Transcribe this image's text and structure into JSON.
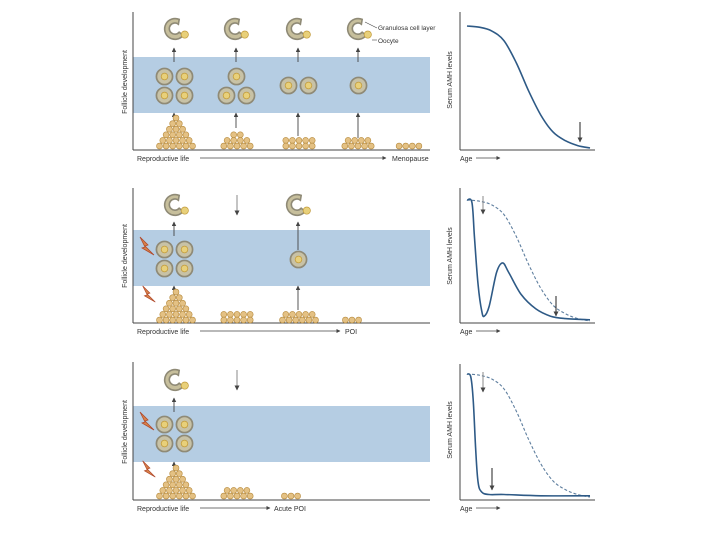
{
  "colors": {
    "band": "#b5cde3",
    "curve": "#2e5a86",
    "dashed": "#5f7f9f",
    "cell_ring": "#8f8a76",
    "cell_fill": "#c8c2a6",
    "oocyte": "#e8d07a",
    "oocyte_ring": "#c19a3a",
    "pool": "#e4c184",
    "pool_ring": "#b78b3e",
    "axis": "#444444",
    "bolt": "#d9834a",
    "bolt_dark": "#b04a2c"
  },
  "labels": {
    "granulosa": "Granulosa cell layer",
    "oocyte": "Oocyte",
    "follicle_dev": "Follicle development",
    "serum_amh": "Serum AMH levels",
    "age": "Age"
  },
  "panels": [
    {
      "id": "normal",
      "x_label_left": "Reproductive life",
      "x_label_right": "Menopause",
      "curve": {
        "type": "line",
        "solid": [
          [
            0,
            100
          ],
          [
            10,
            99
          ],
          [
            20,
            96
          ],
          [
            30,
            88
          ],
          [
            40,
            70
          ],
          [
            50,
            47
          ],
          [
            60,
            27
          ],
          [
            70,
            13
          ],
          [
            80,
            6
          ],
          [
            90,
            2
          ],
          [
            100,
            0
          ]
        ],
        "dashed": []
      }
    },
    {
      "id": "poi",
      "x_label_left": "Reproductive life",
      "x_label_right": "POI",
      "curve": {
        "type": "line",
        "solid": [
          [
            0,
            100
          ],
          [
            4,
            98
          ],
          [
            6,
            70
          ],
          [
            9,
            30
          ],
          [
            12,
            8
          ],
          [
            14,
            4
          ],
          [
            18,
            12
          ],
          [
            24,
            40
          ],
          [
            29,
            48
          ],
          [
            34,
            40
          ],
          [
            44,
            22
          ],
          [
            56,
            10
          ],
          [
            68,
            4
          ],
          [
            80,
            2
          ],
          [
            100,
            1
          ]
        ],
        "dashed": [
          [
            0,
            100
          ],
          [
            10,
            99
          ],
          [
            20,
            96
          ],
          [
            30,
            88
          ],
          [
            40,
            70
          ],
          [
            50,
            47
          ],
          [
            60,
            27
          ],
          [
            70,
            13
          ],
          [
            80,
            6
          ],
          [
            90,
            2
          ],
          [
            100,
            0
          ]
        ]
      }
    },
    {
      "id": "acute",
      "x_label_left": "Reproductive life",
      "x_label_right": "Acute POI",
      "curve": {
        "type": "line",
        "solid": [
          [
            0,
            100
          ],
          [
            3,
            98
          ],
          [
            5,
            80
          ],
          [
            7,
            40
          ],
          [
            9,
            12
          ],
          [
            12,
            4
          ],
          [
            18,
            2
          ],
          [
            30,
            2
          ],
          [
            60,
            1
          ],
          [
            100,
            1
          ]
        ],
        "dashed": [
          [
            0,
            100
          ],
          [
            10,
            99
          ],
          [
            20,
            96
          ],
          [
            30,
            88
          ],
          [
            40,
            70
          ],
          [
            50,
            47
          ],
          [
            60,
            27
          ],
          [
            70,
            13
          ],
          [
            80,
            6
          ],
          [
            90,
            2
          ],
          [
            100,
            0
          ]
        ]
      }
    }
  ]
}
